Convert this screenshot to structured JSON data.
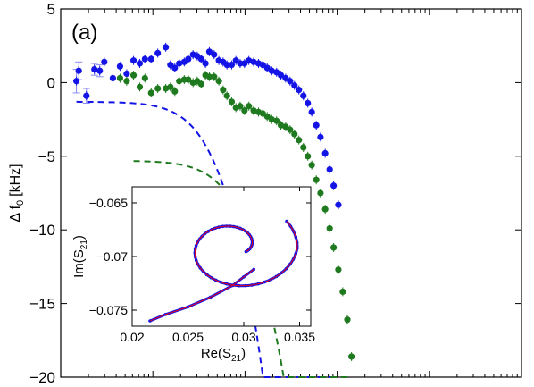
{
  "chart_data": [
    {
      "type": "scatter",
      "panel_label": "(a)",
      "ylabel": "Δ f",
      "ylabel_sub": "0",
      "ylabel_unit": "[kHz]",
      "xlabel": "",
      "xscale": "log",
      "xlim": [
        0.01,
        1000
      ],
      "ylim": [
        -20,
        5
      ],
      "yticks": [
        -20,
        -15,
        -10,
        -5,
        0,
        5
      ],
      "xticklabels": "none",
      "colors": {
        "blue": "#1414e6",
        "green": "#1f7a1f",
        "errorbar_light": "#8888ee"
      },
      "series": [
        {
          "color": "blue",
          "marker": "circle",
          "points": [
            [
              0.0148,
              0.1
            ],
            [
              0.0157,
              0.8
            ],
            [
              0.019,
              -0.9
            ],
            [
              0.0232,
              0.9
            ],
            [
              0.0265,
              0.8
            ],
            [
              0.0297,
              1.4
            ],
            [
              0.0368,
              0.3
            ],
            [
              0.044,
              1.1
            ],
            [
              0.052,
              0.6
            ],
            [
              0.0617,
              1.5
            ],
            [
              0.072,
              1.3
            ],
            [
              0.082,
              1.6
            ],
            [
              0.0958,
              1.6
            ],
            [
              0.113,
              2.0
            ],
            [
              0.138,
              2.4
            ],
            [
              0.155,
              1.2
            ],
            [
              0.173,
              1.0
            ],
            [
              0.193,
              1.3
            ],
            [
              0.219,
              1.4
            ],
            [
              0.242,
              1.6
            ],
            [
              0.273,
              1.9
            ],
            [
              0.303,
              1.8
            ],
            [
              0.335,
              1.6
            ],
            [
              0.372,
              1.3
            ],
            [
              0.41,
              2.1
            ],
            [
              0.462,
              1.9
            ],
            [
              0.52,
              1.5
            ],
            [
              0.578,
              1.4
            ],
            [
              0.637,
              1.2
            ],
            [
              0.716,
              1.2
            ],
            [
              0.797,
              1.5
            ],
            [
              0.885,
              1.3
            ],
            [
              0.987,
              1.3
            ],
            [
              1.1,
              1.5
            ],
            [
              1.24,
              1.4
            ],
            [
              1.4,
              1.3
            ],
            [
              1.56,
              1.2
            ],
            [
              1.74,
              1.0
            ],
            [
              1.95,
              0.8
            ],
            [
              2.2,
              0.7
            ],
            [
              2.45,
              0.5
            ],
            [
              2.76,
              0.3
            ],
            [
              3.08,
              0.1
            ],
            [
              3.44,
              -0.2
            ],
            [
              3.84,
              -0.5
            ],
            [
              4.3,
              -0.9
            ],
            [
              4.8,
              -1.4
            ],
            [
              5.3,
              -2.0
            ],
            [
              5.93,
              -2.9
            ],
            [
              6.59,
              -3.7
            ],
            [
              7.41,
              -4.8
            ],
            [
              8.29,
              -5.9
            ],
            [
              9.15,
              -7.0
            ],
            [
              10.3,
              -8.3
            ]
          ]
        },
        {
          "color": "green",
          "marker": "circle",
          "points": [
            [
              0.044,
              0.3
            ],
            [
              0.052,
              0.1
            ],
            [
              0.0617,
              0.5
            ],
            [
              0.072,
              -0.3
            ],
            [
              0.082,
              0.3
            ],
            [
              0.0958,
              -0.7
            ],
            [
              0.113,
              -0.4
            ],
            [
              0.138,
              -0.4
            ],
            [
              0.155,
              -0.3
            ],
            [
              0.173,
              -0.6
            ],
            [
              0.193,
              0.1
            ],
            [
              0.219,
              0.2
            ],
            [
              0.242,
              0.2
            ],
            [
              0.273,
              0.0
            ],
            [
              0.303,
              0.1
            ],
            [
              0.335,
              -0.1
            ],
            [
              0.372,
              0.5
            ],
            [
              0.41,
              0.4
            ],
            [
              0.462,
              0.4
            ],
            [
              0.52,
              0.1
            ],
            [
              0.578,
              -0.5
            ],
            [
              0.637,
              -0.9
            ],
            [
              0.716,
              -1.3
            ],
            [
              0.797,
              -1.7
            ],
            [
              0.885,
              -1.6
            ],
            [
              0.987,
              -1.9
            ],
            [
              1.1,
              -1.6
            ],
            [
              1.24,
              -1.9
            ],
            [
              1.4,
              -2.0
            ],
            [
              1.56,
              -2.1
            ],
            [
              1.74,
              -2.3
            ],
            [
              1.95,
              -2.5
            ],
            [
              2.2,
              -2.6
            ],
            [
              2.45,
              -2.9
            ],
            [
              2.76,
              -3.0
            ],
            [
              3.08,
              -3.2
            ],
            [
              3.44,
              -3.5
            ],
            [
              3.84,
              -3.9
            ],
            [
              4.3,
              -4.4
            ],
            [
              4.8,
              -5.0
            ],
            [
              5.3,
              -5.6
            ],
            [
              5.93,
              -6.6
            ],
            [
              6.59,
              -7.5
            ],
            [
              7.41,
              -8.6
            ],
            [
              8.29,
              -9.9
            ],
            [
              9.15,
              -11.2
            ],
            [
              10.3,
              -12.7
            ],
            [
              11.5,
              -14.2
            ],
            [
              12.9,
              -16.1
            ],
            [
              14.3,
              -18.6
            ]
          ]
        }
      ],
      "fit_curves": [
        {
          "color": "blue",
          "style": "dashed",
          "x_start": 0.0148,
          "x_end": 10.3,
          "y_offset": -1.3,
          "knee": 0.45,
          "scale": 5.6
        },
        {
          "color": "green",
          "style": "dashed",
          "x_start": 0.0617,
          "x_end": 14.3,
          "y_offset": -5.3,
          "knee": 0.85,
          "scale": 5.0
        }
      ],
      "errorbars": [
        {
          "color": "errorbar_light",
          "x": 0.0148,
          "y": 0.1,
          "dy": 0.8
        },
        {
          "color": "errorbar_light",
          "x": 0.0157,
          "y": 0.8,
          "dy": 0.6
        },
        {
          "color": "errorbar_light",
          "x": 0.019,
          "y": -0.9,
          "dy": 0.5
        },
        {
          "color": "errorbar_light",
          "x": 0.0232,
          "y": 0.9,
          "dy": 0.4
        },
        {
          "color": "errorbar_light",
          "x": 0.0265,
          "y": 0.8,
          "dy": 0.4
        }
      ]
    },
    {
      "type": "line",
      "role": "inset",
      "xlabel": "Re(S",
      "xlabel_sub": "21",
      "xlabel_close": ")",
      "ylabel": "Im(S",
      "ylabel_sub": "21",
      "ylabel_close": ")",
      "xlim": [
        0.02,
        0.036
      ],
      "ylim": [
        -0.0765,
        -0.0635
      ],
      "xticks": [
        0.02,
        0.025,
        0.03,
        0.035
      ],
      "xticklabels": [
        "0.02",
        "0.025",
        "0.03",
        "0.035"
      ],
      "yticks": [
        -0.065,
        -0.07,
        -0.075
      ],
      "yticklabels": [
        "-0.065",
        "-0.07",
        "-0.075"
      ],
      "colors": {
        "data": "#1414e6",
        "fit": "#ff0000"
      },
      "spiral": {
        "center_x": 0.0292,
        "center_y": -0.06915,
        "radius_x": 0.0056,
        "radius_y": 0.00435,
        "theta_start_deg": 326,
        "theta_end_deg": 27
      },
      "tail": [
        [
          0.0309,
          -0.0712
        ],
        [
          0.03,
          -0.0719
        ],
        [
          0.029,
          -0.0727
        ],
        [
          0.027,
          -0.0738
        ],
        [
          0.025,
          -0.0747
        ],
        [
          0.023,
          -0.0754
        ],
        [
          0.0216,
          -0.076
        ]
      ]
    }
  ]
}
